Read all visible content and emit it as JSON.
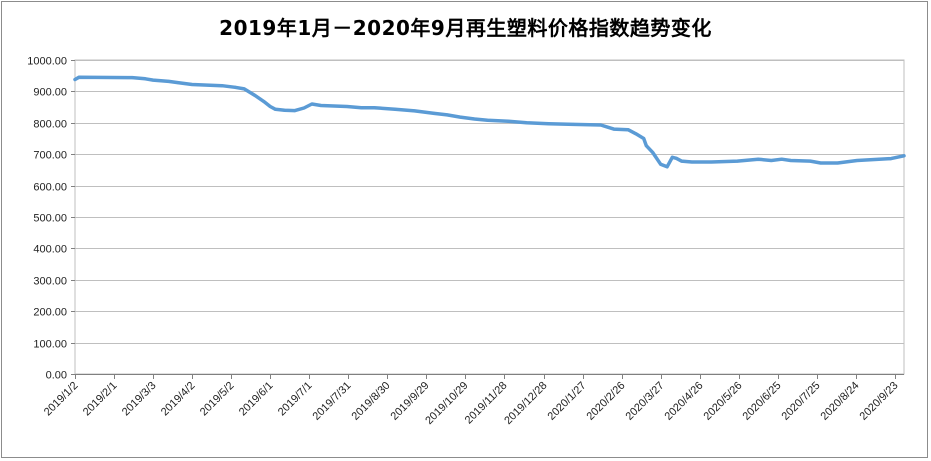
{
  "chart_data": {
    "type": "line",
    "title": "2019年1月－2020年9月再生塑料价格指数趋势变化",
    "xlabel": "",
    "ylabel": "",
    "ylim": [
      0,
      1000
    ],
    "y_ticks": [
      "0.00",
      "100.00",
      "200.00",
      "300.00",
      "400.00",
      "500.00",
      "600.00",
      "700.00",
      "800.00",
      "900.00",
      "1000.00"
    ],
    "x_range": [
      "2019/1/2",
      "2020/9/30"
    ],
    "x_ticks": [
      "2019/1/2",
      "2019/2/1",
      "2019/3/3",
      "2019/4/2",
      "2019/5/2",
      "2019/6/1",
      "2019/7/1",
      "2019/7/31",
      "2019/8/30",
      "2019/9/29",
      "2019/10/29",
      "2019/11/28",
      "2019/12/28",
      "2020/1/27",
      "2020/2/26",
      "2020/3/27",
      "2020/4/26",
      "2020/5/26",
      "2020/6/25",
      "2020/7/25",
      "2020/8/24",
      "2020/9/23"
    ],
    "grid": "horizontal",
    "line_color": "#5b9bd5",
    "series": [
      {
        "x": [
          "2019/1/2",
          "2019/1/5",
          "2019/2/15",
          "2019/2/25",
          "2019/3/3",
          "2019/3/15",
          "2019/3/22",
          "2019/4/2",
          "2019/4/25",
          "2019/5/5",
          "2019/5/12",
          "2019/5/20",
          "2019/5/27",
          "2019/6/1",
          "2019/6/5",
          "2019/6/12",
          "2019/6/20",
          "2019/6/27",
          "2019/7/3",
          "2019/7/10",
          "2019/7/30",
          "2019/8/10",
          "2019/8/20",
          "2019/9/5",
          "2019/9/20",
          "2019/10/5",
          "2019/10/15",
          "2019/10/25",
          "2019/11/5",
          "2019/11/15",
          "2019/12/1",
          "2019/12/15",
          "2020/1/1",
          "2020/1/20",
          "2020/2/10",
          "2020/2/20",
          "2020/3/2",
          "2020/3/8",
          "2020/3/14",
          "2020/3/16",
          "2020/3/21",
          "2020/3/27",
          "2020/4/1",
          "2020/4/5",
          "2020/4/8",
          "2020/4/12",
          "2020/4/20",
          "2020/5/5",
          "2020/5/25",
          "2020/6/10",
          "2020/6/20",
          "2020/6/28",
          "2020/7/5",
          "2020/7/20",
          "2020/7/28",
          "2020/8/10",
          "2020/8/25",
          "2020/9/20",
          "2020/9/30"
        ],
        "values": [
          938,
          945,
          944,
          940,
          936,
          932,
          928,
          922,
          918,
          913,
          908,
          888,
          868,
          852,
          843,
          840,
          839,
          847,
          860,
          855,
          852,
          848,
          848,
          843,
          838,
          830,
          825,
          818,
          812,
          808,
          805,
          800,
          797,
          795,
          793,
          780,
          778,
          765,
          750,
          727,
          705,
          668,
          660,
          690,
          687,
          678,
          675,
          675,
          678,
          684,
          680,
          684,
          680,
          678,
          672,
          672,
          680,
          686,
          695
        ]
      }
    ]
  }
}
